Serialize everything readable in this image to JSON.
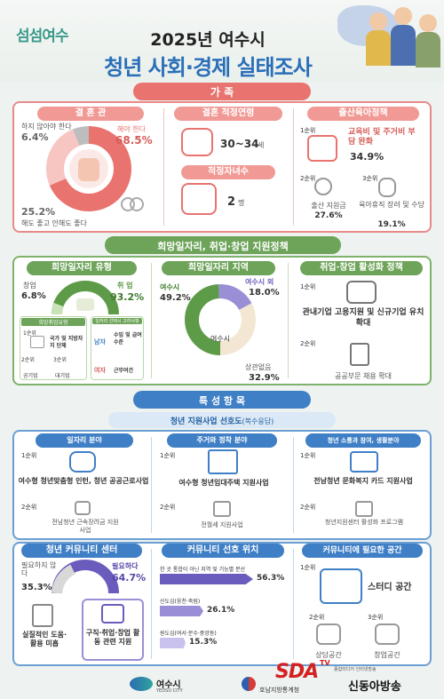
{
  "brand": {
    "logo_text": "섬섬여수"
  },
  "header": {
    "year_title": "2025년 여수시",
    "main_title": "청년 사회·경제 실태조사"
  },
  "sec1": {
    "title": "가  족",
    "marriage": {
      "heading": "결 혼 관",
      "items": [
        {
          "label": "하지 않아야 한다",
          "value": "6.4%"
        },
        {
          "label": "해야 한다",
          "value": "68.5%"
        },
        {
          "label": "해도 좋고 안해도 좋다",
          "value": "25.2%"
        }
      ]
    },
    "age": {
      "heading": "결혼 적정연령",
      "value": "30~34",
      "unit": "세"
    },
    "children": {
      "heading": "적정자녀수",
      "value": "2",
      "unit": "명"
    },
    "policy": {
      "heading": "출산육아정책",
      "first": {
        "rank": "1순위",
        "label": "교육비 및 주거비 부담 완화",
        "value": "34.9%"
      },
      "second": {
        "rank": "2순위",
        "label": "출산 지원금",
        "value": "27.6%"
      },
      "third": {
        "rank": "3순위",
        "label": "육아휴직 장려 및 수당",
        "value": "19.1%"
      }
    }
  },
  "sec2": {
    "title": "희망일자리, 취업·창업 지원정책",
    "jobtype": {
      "heading": "희망일자리 유형",
      "startup": {
        "label": "창업",
        "value": "6.8%"
      },
      "employ": {
        "label": "취 업",
        "value": "93.2%"
      },
      "pref_title": "희망취업유형",
      "pref_rank1": "1순위",
      "pref_1": "국가 및 지방자치 단체",
      "pref_rank2": "2순위",
      "pref_2": "공기업",
      "pref_rank3": "3순위",
      "pref_3": "대기업",
      "crit_title": "일자리 선택시 고려사항",
      "crit_1_gender": "남자",
      "crit_1": "수입 및 급여수준",
      "crit_2_gender": "여자",
      "crit_2": "근무여건"
    },
    "region": {
      "heading": "희망일자리 지역",
      "yeosu": {
        "label": "여수시",
        "value": "49.2%"
      },
      "outside": {
        "label": "여수시 외",
        "value": "18.0%"
      },
      "none": {
        "label": "상관없음",
        "value": "32.9%"
      },
      "center": "여수시"
    },
    "policy": {
      "heading": "취업·창업 활성화 정책",
      "first_rank": "1순위",
      "first": "관내기업 고용지원 및 신규기업 유치 확대",
      "second_rank": "2순위",
      "second": "공공부문 채용 확대"
    }
  },
  "sec3": {
    "title": "특  성  항  목",
    "subtitle": "청년 지원사업 선호도",
    "subtitle_note": "(복수응답)",
    "cols": [
      {
        "heading": "일자리 분야",
        "rank1": "1순위",
        "item1": "여수형 청년맞춤형 인턴, 청년 공공근로사업",
        "rank2": "2순위",
        "item2": "전남청년 근속장려금 지원사업"
      },
      {
        "heading": "주거와 정착 분야",
        "rank1": "1순위",
        "item1": "여수형 청년임대주택 지원사업",
        "rank2": "2순위",
        "item2": "전월세 지원사업"
      },
      {
        "heading": "청년 소통과 참여, 생활분야",
        "rank1": "1순위",
        "item1": "전남청년 문화복지 카드 지원사업",
        "rank2": "2순위",
        "item2": "청년지원센터 활성화 프로그램"
      }
    ],
    "center": {
      "heading": "청년 커뮤니티 센터",
      "notneed": {
        "label": "필요하지 않다",
        "value": "35.3%"
      },
      "need": {
        "label": "필요하다",
        "value": "64.7%"
      },
      "reason_no": "실질적인 도움·활용 미흡",
      "reason_yes": "구직·취업·창업 활동 관련 지원"
    },
    "location": {
      "heading": "커뮤니티 선호 위치",
      "bars": [
        {
          "label": "한 곳 통합이 아닌 지역 및 기능별 분산",
          "value": "56.3%",
          "pct": 56.3
        },
        {
          "label": "신도심(웅천·죽림)",
          "value": "26.1%",
          "pct": 26.1
        },
        {
          "label": "원도심(여서·문수·중앙동)",
          "value": "15.3%",
          "pct": 15.3
        }
      ]
    },
    "space": {
      "heading": "커뮤니티에 필요한 공간",
      "rank1": "1순위",
      "item1": "스터디 공간",
      "rank2": "2순위",
      "item2": "상담공간",
      "rank3": "3순위",
      "item3": "창업공간"
    }
  },
  "footer": {
    "city": "여수시",
    "city_en": "YEOSU CITY",
    "stat": "호남지방통계청",
    "sda": "SDA",
    "tv": "TV",
    "sda_sub": "종합미디어 인터넷방송",
    "broadcaster": "신동아방송"
  },
  "colors": {
    "red": "#e8736f",
    "pink": "#f7c5c2",
    "green": "#5e9b48",
    "lightgreen": "#c9e3b8",
    "blue": "#3f7fc6",
    "purple": "#7b6cc4",
    "lavender": "#c9c1ee",
    "beige": "#f3e6d2"
  }
}
